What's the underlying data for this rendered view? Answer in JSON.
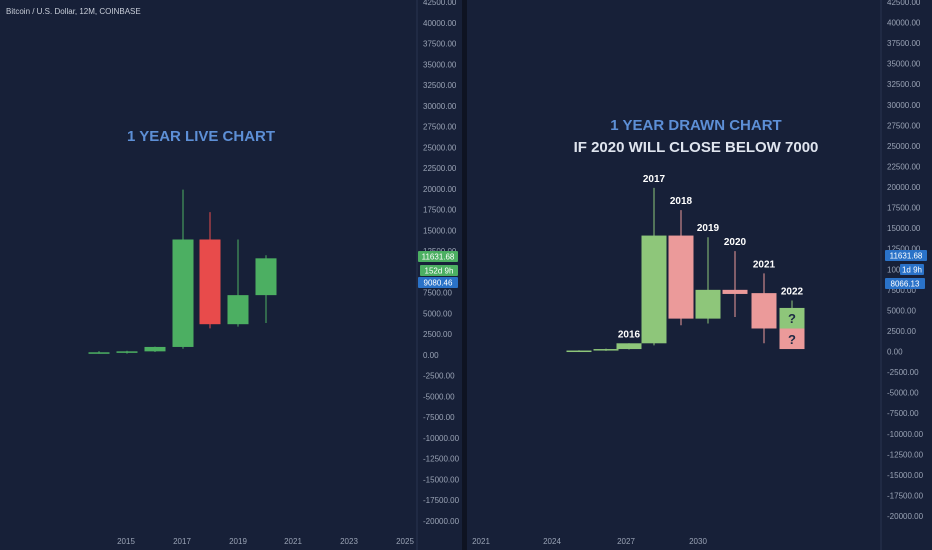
{
  "symbol_label": "Bitcoin / U.S. Dollar, 12M, COINBASE",
  "colors": {
    "background": "#172038",
    "axis_text": "#9aa3b5",
    "live_up": "#4caf62",
    "live_down": "#e84b4b",
    "drawn_up": "#8ec67a",
    "drawn_down": "#eb9a9a",
    "title": "#5d8fd6",
    "subtitle": "#dfe4ee",
    "badge_green": "#4caf62",
    "badge_blue": "#2a72c8"
  },
  "chart_data": [
    {
      "type": "candlestick",
      "title": "1 YEAR LIVE CHART",
      "ylim": [
        -21250,
        42500
      ],
      "y_ticks": [
        "42500.00",
        "40000.00",
        "37500.00",
        "35000.00",
        "32500.00",
        "30000.00",
        "27500.00",
        "25000.00",
        "22500.00",
        "20000.00",
        "17500.00",
        "15000.00",
        "12500.00",
        "10000.00",
        "7500.00",
        "5000.00",
        "2500.00",
        "0.00",
        "-2500.00",
        "-5000.00",
        "-7500.00",
        "-10000.00",
        "-12500.00",
        "-15000.00",
        "-17500.00",
        "-20000.00"
      ],
      "x_ticks": [
        "2015",
        "2017",
        "2019",
        "2021",
        "2023",
        "2025"
      ],
      "candles": [
        {
          "year": 2014,
          "open": 300,
          "high": 450,
          "low": 150,
          "close": 315
        },
        {
          "year": 2015,
          "open": 315,
          "high": 500,
          "low": 150,
          "close": 430
        },
        {
          "year": 2016,
          "open": 430,
          "high": 1000,
          "low": 350,
          "close": 960
        },
        {
          "year": 2017,
          "open": 960,
          "high": 19900,
          "low": 750,
          "close": 13900
        },
        {
          "year": 2018,
          "open": 13900,
          "high": 17200,
          "low": 3200,
          "close": 3700
        },
        {
          "year": 2019,
          "open": 3700,
          "high": 13900,
          "low": 3400,
          "close": 7200
        },
        {
          "year": 2020,
          "open": 7200,
          "high": 12000,
          "low": 3850,
          "close": 11631.68
        }
      ],
      "badges": [
        {
          "text": "11631.68",
          "color": "green"
        },
        {
          "text": "152d 9h",
          "color": "green"
        },
        {
          "text": "9080.46",
          "color": "blue"
        }
      ]
    },
    {
      "type": "candlestick",
      "title": "1 YEAR DRAWN CHART",
      "subtitle": "IF 2020 WILL CLOSE BELOW 7000",
      "ylim": [
        -21250,
        42500
      ],
      "y_ticks": [
        "42500.00",
        "40000.00",
        "37500.00",
        "35000.00",
        "32500.00",
        "30000.00",
        "27500.00",
        "25000.00",
        "22500.00",
        "20000.00",
        "17500.00",
        "15000.00",
        "12500.00",
        "10000.00",
        "7500.00",
        "5000.00",
        "2500.00",
        "0.00",
        "-2500.00",
        "-5000.00",
        "-7500.00",
        "-10000.00",
        "-12500.00",
        "-15000.00",
        "-17500.00",
        "-20000.00"
      ],
      "x_ticks": [
        "2021",
        "2024",
        "2027",
        "2030"
      ],
      "candles": [
        {
          "label": "",
          "open": 50,
          "high": 150,
          "low": -50,
          "close": 120
        },
        {
          "label": "",
          "open": 120,
          "high": 350,
          "low": 80,
          "close": 300
        },
        {
          "label": "2016",
          "open": 300,
          "high": 1000,
          "low": 250,
          "close": 1000
        },
        {
          "label": "2017",
          "open": 1000,
          "high": 19900,
          "low": 750,
          "close": 14100
        },
        {
          "label": "2018",
          "open": 14100,
          "high": 17200,
          "low": 3200,
          "close": 4000
        },
        {
          "label": "2019",
          "open": 4000,
          "high": 13900,
          "low": 3400,
          "close": 7500
        },
        {
          "label": "2020",
          "open": 7500,
          "high": 12200,
          "low": 4200,
          "close": 7000
        },
        {
          "label": "2021",
          "open": 7100,
          "high": 9500,
          "low": 1000,
          "close": 2800
        },
        {
          "label": "2022",
          "open": 2800,
          "high": 6200,
          "low": 2500,
          "close": 5300,
          "mark": "?"
        },
        {
          "label": "",
          "open": 2800,
          "high": 2800,
          "low": 300,
          "close": 300,
          "mark": "?"
        }
      ],
      "badges": [
        {
          "text": "11631.68",
          "color": "blue"
        },
        {
          "text": "1d 9h",
          "color": "blue"
        },
        {
          "text": "8066.13",
          "color": "blue"
        }
      ]
    }
  ]
}
